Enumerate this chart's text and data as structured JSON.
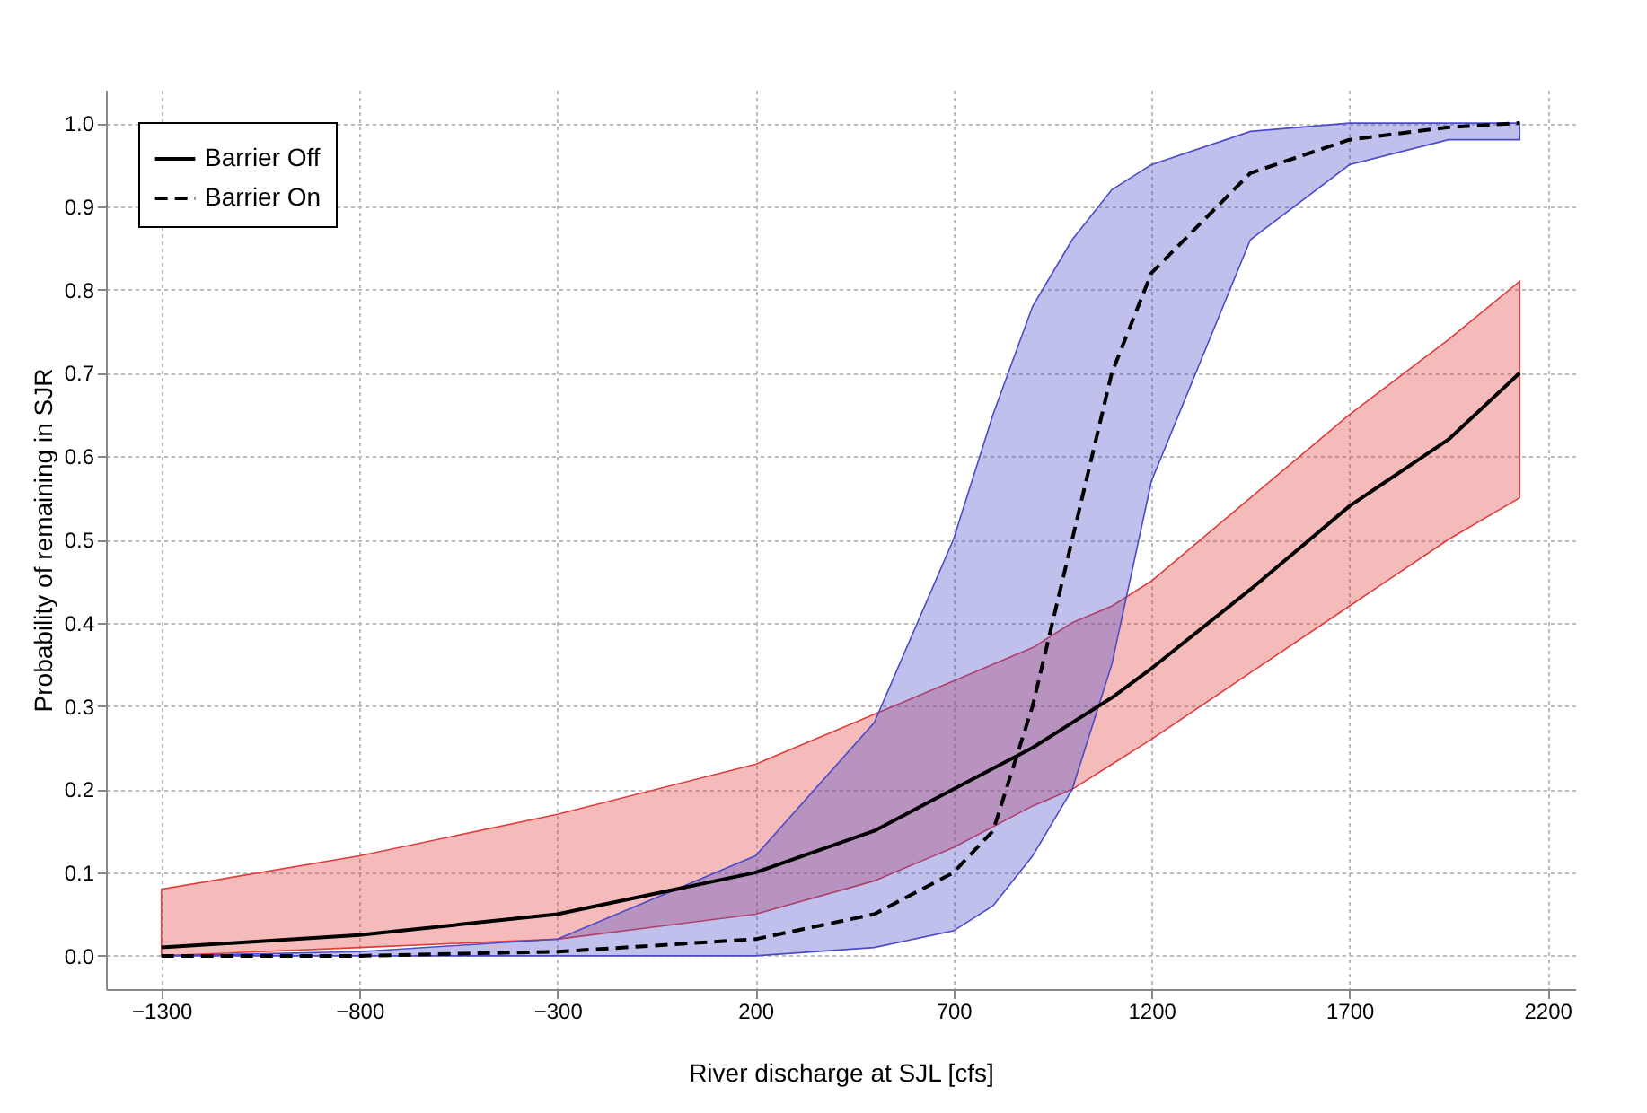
{
  "chart_data": {
    "type": "line",
    "xlabel": "River discharge at SJL [cfs]",
    "ylabel": "Probability of remaining in SJR",
    "xlim": [
      -1440,
      2270
    ],
    "ylim": [
      -0.04,
      1.04
    ],
    "xticks": [
      -1300,
      -800,
      -300,
      200,
      700,
      1200,
      1700,
      2200
    ],
    "yticks": [
      {
        "value": 0,
        "label": "0.0"
      },
      0.1,
      0.2,
      0.3,
      0.4,
      0.5,
      0.6,
      0.7,
      0.8,
      0.9,
      {
        "value": 1,
        "label": "1.0"
      }
    ],
    "grid": true,
    "legend": "top left",
    "marker": "none",
    "series": [
      {
        "name": "Barrier Off",
        "color": "#000000",
        "line_style": "solid",
        "x": [
          -1300,
          -800,
          -300,
          200,
          500,
          700,
          900,
          1000,
          1100,
          1200,
          1450,
          1700,
          1950,
          2130
        ],
        "values": [
          0.01,
          0.025,
          0.05,
          0.1,
          0.15,
          0.2,
          0.25,
          0.28,
          0.31,
          0.345,
          0.44,
          0.54,
          0.62,
          0.7
        ],
        "lower": [
          0.0,
          0.01,
          0.02,
          0.05,
          0.09,
          0.13,
          0.18,
          0.2,
          0.23,
          0.26,
          0.34,
          0.42,
          0.5,
          0.55
        ],
        "upper": [
          0.08,
          0.12,
          0.17,
          0.23,
          0.29,
          0.33,
          0.37,
          0.4,
          0.42,
          0.45,
          0.55,
          0.65,
          0.74,
          0.81
        ]
      },
      {
        "name": "Barrier On",
        "color": "#000000",
        "line_style": "dashed",
        "x": [
          -1300,
          -800,
          -300,
          200,
          500,
          700,
          800,
          900,
          1000,
          1100,
          1200,
          1450,
          1700,
          1950,
          2130
        ],
        "values": [
          0.0,
          0.0,
          0.005,
          0.02,
          0.05,
          0.1,
          0.15,
          0.3,
          0.5,
          0.7,
          0.82,
          0.94,
          0.98,
          0.995,
          1.0
        ],
        "lower": [
          0.0,
          0.0,
          0.0,
          0.0,
          0.01,
          0.03,
          0.06,
          0.12,
          0.2,
          0.35,
          0.57,
          0.86,
          0.95,
          0.98,
          0.98
        ],
        "upper": [
          0.0,
          0.005,
          0.02,
          0.12,
          0.28,
          0.5,
          0.65,
          0.78,
          0.86,
          0.92,
          0.95,
          0.99,
          1.0,
          1.0,
          1.0
        ]
      }
    ]
  }
}
